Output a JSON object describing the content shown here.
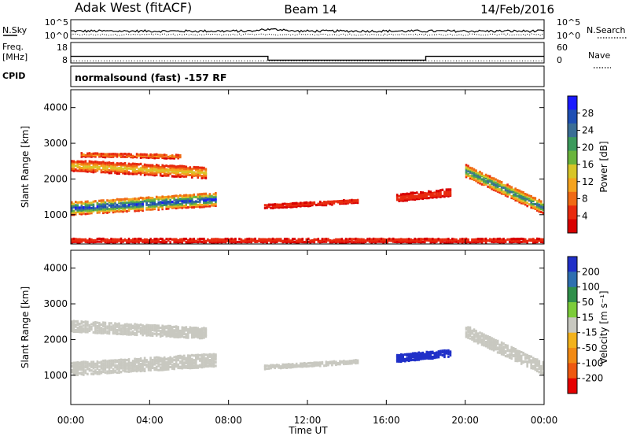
{
  "header": {
    "station": "Adak West (fitACF)",
    "beam": "Beam 14",
    "date": "14/Feb/2016"
  },
  "nsky_panel": {
    "left_label": "N.Sky",
    "right_label": "N.Search",
    "left_ticks": [
      "10^5",
      "10^0"
    ],
    "right_ticks": [
      "10^5",
      "10^0"
    ]
  },
  "freq_panel": {
    "left_label_top": "Freq.",
    "left_label_bottom": "[MHz]",
    "right_label": "Nave",
    "left_ticks": [
      "18",
      "8"
    ],
    "right_ticks": [
      "60",
      "0"
    ],
    "freq_steps": [
      {
        "t0": 0,
        "t1": 10,
        "value": 12.2
      },
      {
        "t0": 10,
        "t1": 18,
        "value": 9.8
      },
      {
        "t0": 18,
        "t1": 24,
        "value": 12.2
      }
    ],
    "nave_level": 8
  },
  "cpid": {
    "label": "CPID",
    "text": "normalsound (fast) -157 RF"
  },
  "xaxis": {
    "title": "Time UT",
    "ticks": [
      "00:00",
      "04:00",
      "08:00",
      "12:00",
      "16:00",
      "20:00",
      "00:00"
    ],
    "range_hours": [
      0,
      24
    ]
  },
  "chart_data": [
    {
      "type": "heatmap",
      "title": "",
      "quantity": "Power",
      "ylabel": "Slant Range [km]",
      "ylim": [
        180,
        4500
      ],
      "yticks": [
        1000,
        2000,
        3000,
        4000
      ],
      "colorbar_label": "Power [dB]",
      "colorbar_ticks": [
        4,
        8,
        12,
        16,
        20,
        24,
        28
      ],
      "colorbar_colors": [
        "#1a1aff",
        "#1e4fb4",
        "#3a6e96",
        "#3c9a5c",
        "#6ab43c",
        "#d7c528",
        "#f5a31e",
        "#f06a14",
        "#e82a0e",
        "#d80000"
      ],
      "regions": [
        {
          "name": "main echo band",
          "t0": 0.0,
          "t1": 7.3,
          "r_start": 1150,
          "r_end": 1400,
          "thickness": 380,
          "level": 28
        },
        {
          "name": "upper band",
          "t0": 0.0,
          "t1": 6.8,
          "r_start": 2350,
          "r_end": 2150,
          "thickness": 320,
          "level": 14
        },
        {
          "name": "top streaks",
          "t0": 0.5,
          "t1": 5.5,
          "r_start": 2650,
          "r_end": 2600,
          "thickness": 120,
          "level": 10
        },
        {
          "name": "midday patch",
          "t0": 9.8,
          "t1": 14.5,
          "r_start": 1200,
          "r_end": 1350,
          "thickness": 120,
          "level": 6
        },
        {
          "name": "evening patch",
          "t0": 16.5,
          "t1": 19.3,
          "r_start": 1450,
          "r_end": 1600,
          "thickness": 220,
          "level": 6
        },
        {
          "name": "post 20:00 band",
          "t0": 20.0,
          "t1": 24.0,
          "r_start": 2200,
          "r_end": 1150,
          "thickness": 350,
          "level": 24
        },
        {
          "name": "ground scatter base",
          "t0": 0.0,
          "t1": 24.0,
          "r_start": 250,
          "r_end": 250,
          "thickness": 120,
          "level": 6
        }
      ]
    },
    {
      "type": "heatmap",
      "title": "",
      "quantity": "Velocity",
      "ylabel": "Slant Range [km]",
      "ylim": [
        180,
        4500
      ],
      "yticks": [
        1000,
        2000,
        3000,
        4000
      ],
      "colorbar_label": "Velocity [m s⁻¹]",
      "colorbar_ticks": [
        200,
        100,
        50,
        15,
        -15,
        -50,
        -100,
        -200
      ],
      "colorbar_colors": [
        "#2030c8",
        "#2e6fb0",
        "#2f8f4a",
        "#7ccc3a",
        "#c8c8c0",
        "#f2b21c",
        "#f28a14",
        "#ee5810",
        "#e60000"
      ],
      "regions": [
        {
          "name": "ground scatter band",
          "t0": 0.0,
          "t1": 7.3,
          "r_start": 1150,
          "r_end": 1400,
          "thickness": 380,
          "level": 0
        },
        {
          "name": "upper band",
          "t0": 0.0,
          "t1": 6.8,
          "r_start": 2350,
          "r_end": 2150,
          "thickness": 320,
          "level": 0
        },
        {
          "name": "midday patch",
          "t0": 9.8,
          "t1": 14.5,
          "r_start": 1200,
          "r_end": 1350,
          "thickness": 120,
          "level": -40
        },
        {
          "name": "evening patch",
          "t0": 16.5,
          "t1": 19.3,
          "r_start": 1450,
          "r_end": 1600,
          "thickness": 220,
          "level": 150
        },
        {
          "name": "post 20:00 band",
          "t0": 20.0,
          "t1": 24.0,
          "r_start": 2200,
          "r_end": 1150,
          "thickness": 350,
          "level": 0
        }
      ]
    }
  ]
}
